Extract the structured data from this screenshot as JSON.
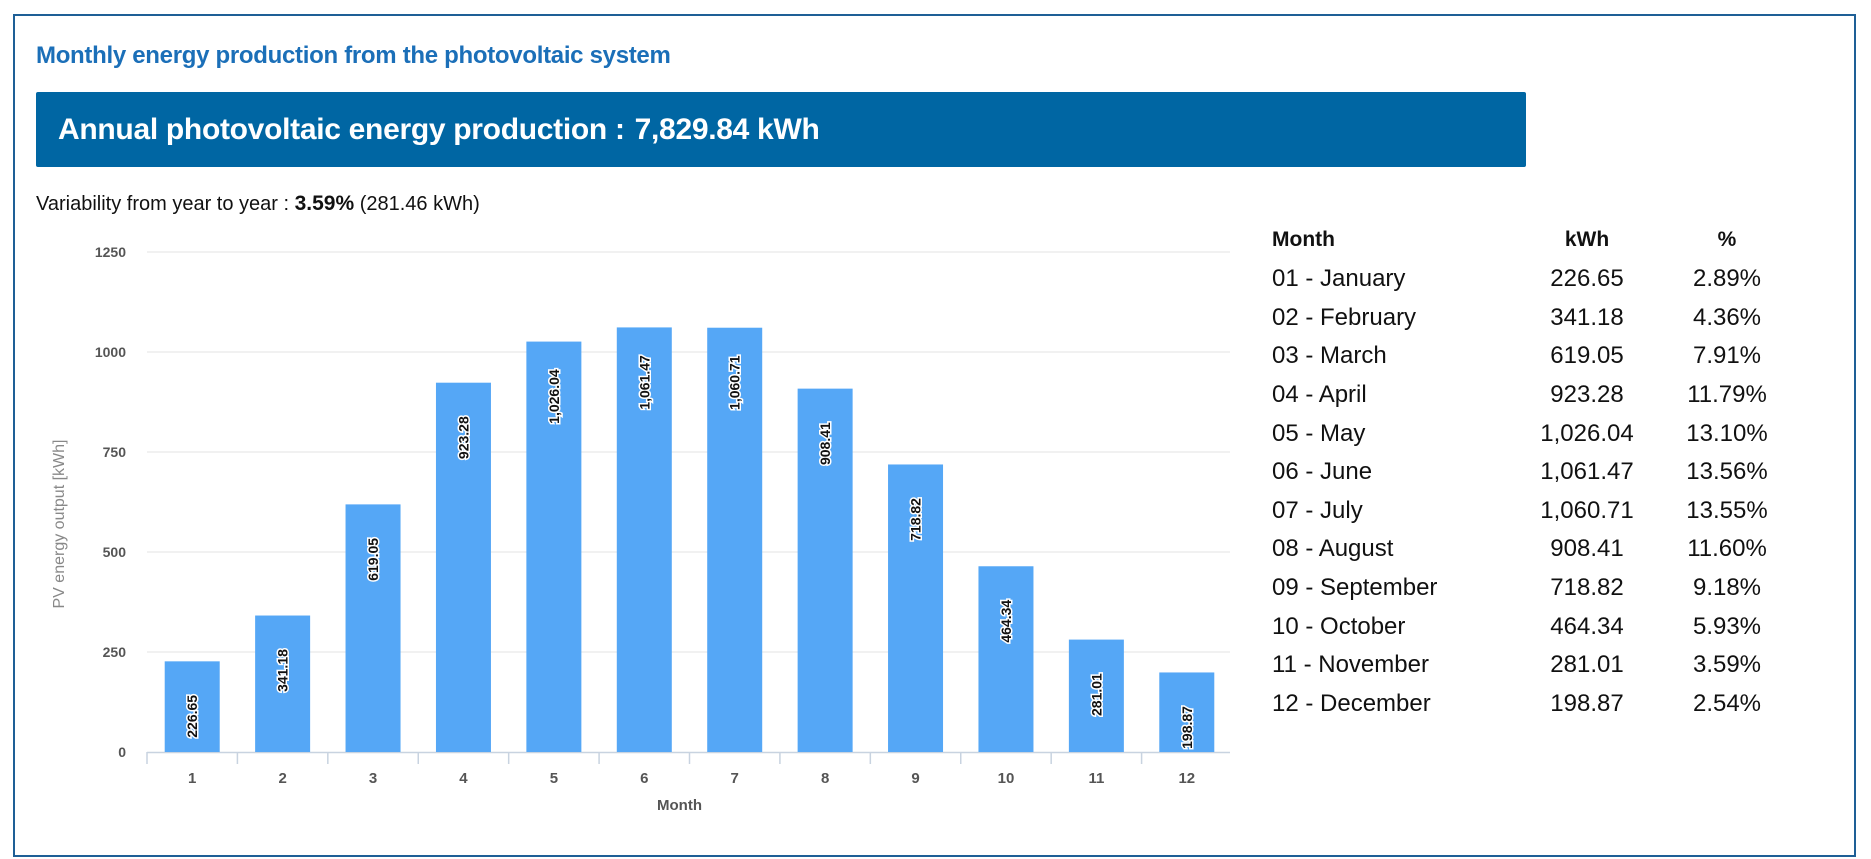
{
  "title": "Monthly energy production from the photovoltaic system",
  "banner": {
    "label": "Annual photovoltaic energy production :",
    "value": "7,829.84 kWh"
  },
  "variability": {
    "label": "Variability from year to year :",
    "percent": "3.59%",
    "kwh": "(281.46 kWh)"
  },
  "table": {
    "headers": [
      "Month",
      "kWh",
      "%"
    ],
    "rows": [
      [
        "01 - January",
        "226.65",
        "2.89%"
      ],
      [
        "02 - February",
        "341.18",
        "4.36%"
      ],
      [
        "03 - March",
        "619.05",
        "7.91%"
      ],
      [
        "04 - April",
        "923.28",
        "11.79%"
      ],
      [
        "05 - May",
        "1,026.04",
        "13.10%"
      ],
      [
        "06 - June",
        "1,061.47",
        "13.56%"
      ],
      [
        "07 - July",
        "1,060.71",
        "13.55%"
      ],
      [
        "08 - August",
        "908.41",
        "11.60%"
      ],
      [
        "09 - September",
        "718.82",
        "9.18%"
      ],
      [
        "10 - October",
        "464.34",
        "5.93%"
      ],
      [
        "11 - November",
        "281.01",
        "3.59%"
      ],
      [
        "12 - December",
        "198.87",
        "2.54%"
      ]
    ]
  },
  "chart_data": {
    "type": "bar",
    "categories": [
      "1",
      "2",
      "3",
      "4",
      "5",
      "6",
      "7",
      "8",
      "9",
      "10",
      "11",
      "12"
    ],
    "values": [
      226.65,
      341.18,
      619.05,
      923.28,
      1026.04,
      1061.47,
      1060.71,
      908.41,
      718.82,
      464.34,
      281.01,
      198.87
    ],
    "data_labels": [
      "226.65",
      "341.18",
      "619.05",
      "923.28",
      "1,026.04",
      "1,061.47",
      "1,060.71",
      "908.41",
      "718.82",
      "464.34",
      "281.01",
      "198.87"
    ],
    "xlabel": "Month",
    "ylabel": "PV energy output [kWh]",
    "ylim": [
      0,
      1250
    ],
    "yticks": [
      0,
      250,
      500,
      750,
      1000,
      1250
    ],
    "grid": true,
    "colors": {
      "bar": "#55a7f6",
      "grid": "#e3e3e3",
      "axis": "#c8d3e0"
    }
  }
}
